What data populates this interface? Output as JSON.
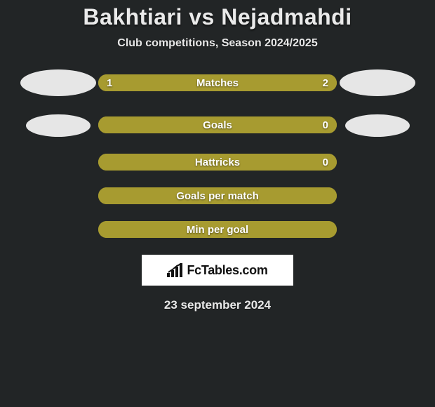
{
  "title": "Bakhtiari vs Nejadmahdi",
  "subtitle": "Club competitions, Season 2024/2025",
  "date": "23 september 2024",
  "logo_text": "FcTables.com",
  "colors": {
    "left": "#a79b30",
    "right": "#a79b30",
    "background": "#222526",
    "bar_label_text": "#ffffff"
  },
  "bars": [
    {
      "label": "Matches",
      "left_val": "1",
      "right_val": "2",
      "left_pct": 33.3,
      "right_pct": 66.7,
      "show_left_photo": true,
      "show_right_photo": true,
      "photo_class_left": "photo-left-1",
      "photo_class_right": "photo-right-1"
    },
    {
      "label": "Goals",
      "left_val": "",
      "right_val": "0",
      "left_pct": 55,
      "right_pct": 45,
      "show_left_photo": true,
      "show_right_photo": true,
      "photo_class_left": "photo-left-2",
      "photo_class_right": "photo-right-2"
    },
    {
      "label": "Hattricks",
      "left_val": "",
      "right_val": "0",
      "left_pct": 0,
      "right_pct": 100,
      "show_left_photo": false,
      "show_right_photo": false
    },
    {
      "label": "Goals per match",
      "left_val": "",
      "right_val": "",
      "left_pct": 100,
      "right_pct": 0,
      "show_left_photo": false,
      "show_right_photo": false
    },
    {
      "label": "Min per goal",
      "left_val": "",
      "right_val": "",
      "left_pct": 100,
      "right_pct": 0,
      "show_left_photo": false,
      "show_right_photo": false
    }
  ]
}
